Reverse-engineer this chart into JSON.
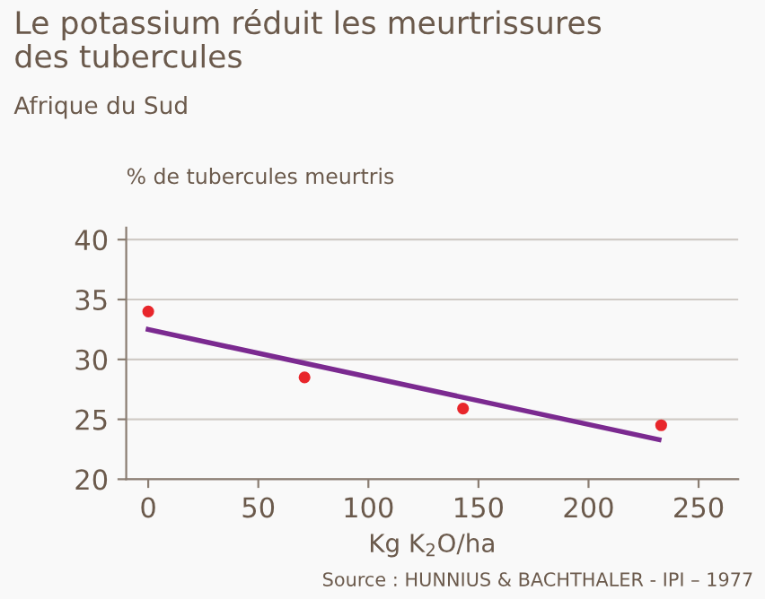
{
  "chart_data": {
    "type": "scatter",
    "title": "Le potassium réduit les meurtrissures\ndes tubercules",
    "subtitle": "Afrique du Sud",
    "ylabel": "% de tubercules meurtris",
    "xlabel": "Kg K$_{2}$O/ha",
    "series": [
      {
        "color": "#e8262b",
        "x": [
          0,
          71,
          143,
          233
        ],
        "values": [
          34,
          28.5,
          25.9,
          24.5
        ]
      },
      {
        "type": "line",
        "color": "#7b2a90",
        "x": [
          0,
          232
        ],
        "values": [
          32.5,
          23.3
        ]
      }
    ],
    "xlim": [
      -10,
      268
    ],
    "ylim": [
      20,
      41
    ],
    "xticks": [
      0,
      50,
      100,
      150,
      200,
      250
    ],
    "yticks": [
      20,
      25,
      30,
      35,
      40
    ],
    "grid": "y",
    "annotations": [
      "Source : HUNNIUS & BACHTHALER - IPI – 1977"
    ]
  }
}
